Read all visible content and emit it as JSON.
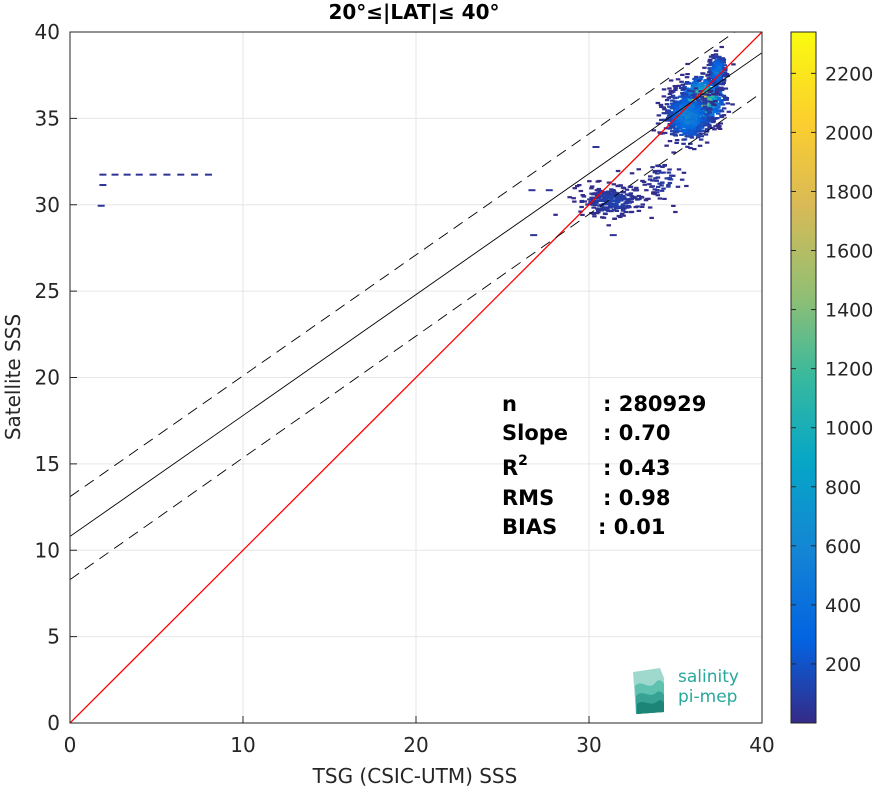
{
  "chart_data": {
    "type": "scatter",
    "title": "20°≤|LAT|≤ 40°",
    "xlabel": "TSG (CSIC-UTM) SSS",
    "ylabel": "Satellite SSS",
    "xlim": [
      0,
      40
    ],
    "ylim": [
      0,
      40
    ],
    "xticks": [
      "0",
      "10",
      "20",
      "30",
      "40"
    ],
    "yticks": [
      "0",
      "5",
      "10",
      "15",
      "20",
      "25",
      "30",
      "35",
      "40"
    ],
    "grid": true,
    "density_colormap": "parula",
    "colorbar": {
      "range": [
        0,
        2340
      ],
      "ticks": [
        "200",
        "400",
        "600",
        "800",
        "1000",
        "1200",
        "1400",
        "1600",
        "1800",
        "2000",
        "2200"
      ]
    },
    "lines": [
      {
        "kind": "identity",
        "color": "#ff0000",
        "points": [
          [
            0,
            0
          ],
          [
            40,
            40
          ]
        ]
      },
      {
        "kind": "regression",
        "color": "#000000",
        "points": [
          [
            0,
            10.8
          ],
          [
            40,
            38.8
          ]
        ]
      },
      {
        "kind": "regression-upper",
        "color": "#000000",
        "dashed": true,
        "points": [
          [
            0,
            13.1
          ],
          [
            40,
            41.1
          ]
        ]
      },
      {
        "kind": "regression-lower",
        "color": "#000000",
        "dashed": true,
        "points": [
          [
            0,
            8.3
          ],
          [
            40,
            36.5
          ]
        ]
      }
    ],
    "clusters": [
      {
        "x": 36.4,
        "y": 36.1,
        "sx": 0.9,
        "sy": 1.0,
        "n": 900,
        "peak": 2300
      },
      {
        "x": 35.6,
        "y": 35.2,
        "sx": 1.1,
        "sy": 1.2,
        "n": 600,
        "peak": 700
      },
      {
        "x": 37.3,
        "y": 37.8,
        "sx": 0.4,
        "sy": 0.8,
        "n": 200,
        "peak": 600
      },
      {
        "x": 31.2,
        "y": 30.3,
        "sx": 1.6,
        "sy": 0.8,
        "n": 260,
        "peak": 150
      },
      {
        "x": 34.2,
        "y": 31.5,
        "sx": 1.0,
        "sy": 1.0,
        "n": 60,
        "peak": 120
      }
    ],
    "outliers": [
      {
        "x": 1.7,
        "y": 31.8
      },
      {
        "x": 2.4,
        "y": 31.8
      },
      {
        "x": 3.1,
        "y": 31.8
      },
      {
        "x": 3.8,
        "y": 31.8
      },
      {
        "x": 4.6,
        "y": 31.8
      },
      {
        "x": 5.4,
        "y": 31.8
      },
      {
        "x": 6.2,
        "y": 31.8
      },
      {
        "x": 7.0,
        "y": 31.8
      },
      {
        "x": 7.8,
        "y": 31.8
      },
      {
        "x": 1.7,
        "y": 31.2
      },
      {
        "x": 1.6,
        "y": 30.0
      },
      {
        "x": 26.6,
        "y": 28.3
      },
      {
        "x": 31.2,
        "y": 28.3
      },
      {
        "x": 30.2,
        "y": 33.4
      },
      {
        "x": 26.5,
        "y": 30.9
      },
      {
        "x": 27.5,
        "y": 30.9
      }
    ]
  },
  "stats": {
    "n_label": "n",
    "n_value": ": 280929",
    "slope_label": "Slope",
    "slope_value": ": 0.70",
    "r2_label": "R",
    "r2_sup": "2",
    "r2_value": ": 0.43",
    "rms_label": "RMS",
    "rms_value": ": 0.98",
    "bias_label": "BIAS",
    "bias_value": ": 0.01"
  },
  "logo": {
    "line1": "salinity",
    "line2": "pi-mep",
    "color": "#2aa79b"
  }
}
